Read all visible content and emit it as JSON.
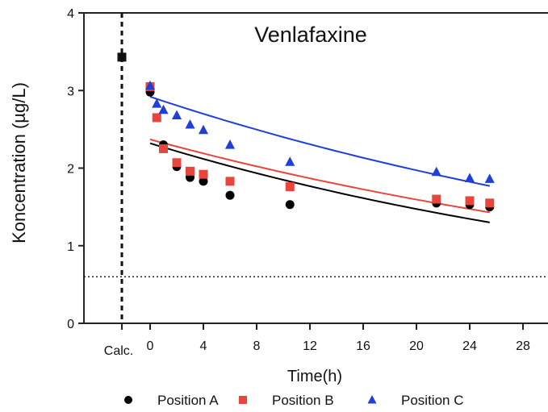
{
  "chart_data": {
    "type": "scatter",
    "title": "Venlafaxine",
    "xlabel": "Time(h)",
    "ylabel": "Koncentration (µg/L)",
    "xlim": [
      -5,
      28
    ],
    "ylim": [
      0,
      4
    ],
    "xticks": [
      0,
      4,
      8,
      12,
      16,
      20,
      24,
      28
    ],
    "yticks": [
      0,
      1,
      2,
      3,
      4
    ],
    "calc_label": "Calc.",
    "calc_value": 3.43,
    "reference_line_y": 0.6,
    "grid": false,
    "legend_position": "bottom",
    "series": [
      {
        "name": "Position A",
        "marker": "circle",
        "color": "#000000",
        "points": [
          [
            0,
            2.98
          ],
          [
            1,
            2.3
          ],
          [
            2,
            2.02
          ],
          [
            3,
            1.88
          ],
          [
            4,
            1.83
          ],
          [
            6,
            1.65
          ],
          [
            10.5,
            1.53
          ],
          [
            21.5,
            1.55
          ],
          [
            24,
            1.53
          ],
          [
            25.5,
            1.5
          ]
        ],
        "fit": [
          [
            0,
            2.32
          ],
          [
            25.5,
            1.3
          ]
        ]
      },
      {
        "name": "Position B",
        "marker": "square",
        "color": "#e8453c",
        "points": [
          [
            0,
            3.05
          ],
          [
            0.5,
            2.65
          ],
          [
            1,
            2.25
          ],
          [
            2,
            2.07
          ],
          [
            3,
            1.96
          ],
          [
            4,
            1.92
          ],
          [
            6,
            1.83
          ],
          [
            10.5,
            1.76
          ],
          [
            21.5,
            1.6
          ],
          [
            24,
            1.58
          ],
          [
            25.5,
            1.55
          ]
        ],
        "fit": [
          [
            0,
            2.37
          ],
          [
            25.5,
            1.43
          ]
        ]
      },
      {
        "name": "Position C",
        "marker": "triangle",
        "color": "#1f3fd6",
        "points": [
          [
            0,
            3.06
          ],
          [
            0.5,
            2.83
          ],
          [
            1,
            2.75
          ],
          [
            2,
            2.68
          ],
          [
            3,
            2.56
          ],
          [
            4,
            2.49
          ],
          [
            6,
            2.3
          ],
          [
            10.5,
            2.08
          ],
          [
            21.5,
            1.95
          ],
          [
            24,
            1.87
          ],
          [
            25.5,
            1.86
          ]
        ],
        "fit": [
          [
            0,
            2.92
          ],
          [
            25.5,
            1.77
          ]
        ]
      }
    ]
  }
}
